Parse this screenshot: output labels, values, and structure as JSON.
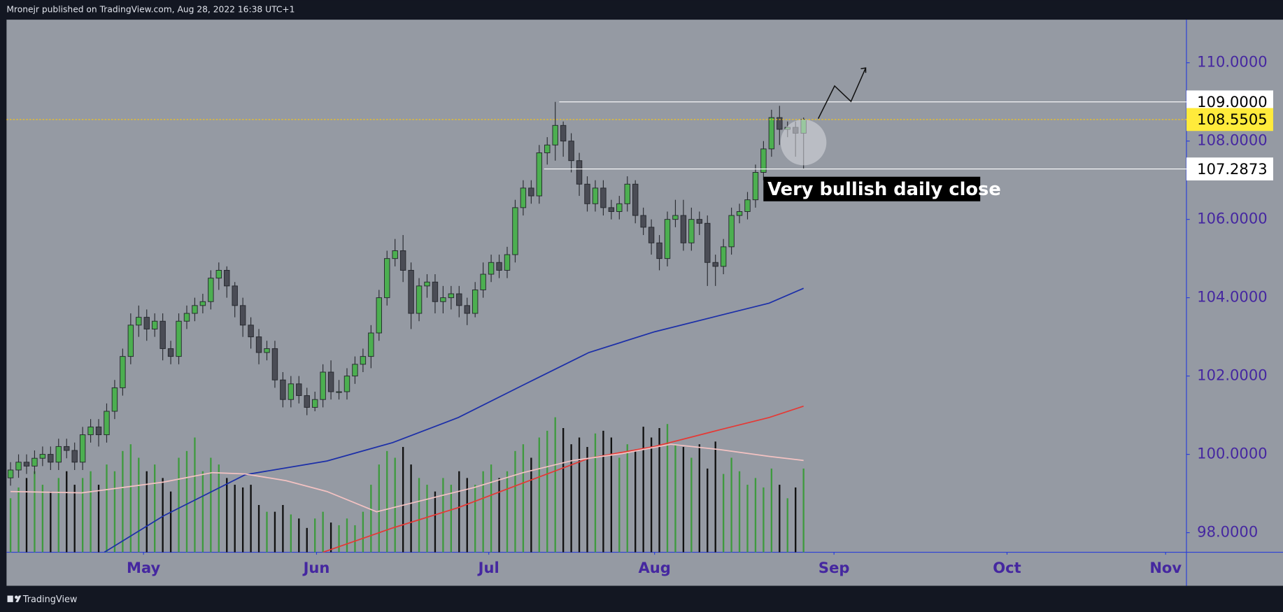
{
  "header": "Mronejr published on TradingView.com, Aug 28, 2022 16:38 UTC+1",
  "footer": "TradingView",
  "chart_data": {
    "type": "candlestick",
    "annotation": "Very bullish daily close",
    "xlim": [
      -0.5,
      146.8
    ],
    "xticks": [
      {
        "value": 16.6,
        "label": "May"
      },
      {
        "value": 38.2,
        "label": "Jun"
      },
      {
        "value": 59.7,
        "label": "Jul"
      },
      {
        "value": 80.4,
        "label": "Aug"
      },
      {
        "value": 102.8,
        "label": "Sep"
      },
      {
        "value": 124.4,
        "label": "Oct"
      },
      {
        "value": 144.2,
        "label": "Nov"
      }
    ],
    "ylim": [
      97.5,
      111.1
    ],
    "yticks": [
      {
        "value": 110,
        "label": "110.0000"
      },
      {
        "value": 108,
        "label": "108.0000"
      },
      {
        "value": 106,
        "label": "106.0000"
      },
      {
        "value": 104,
        "label": "104.0000"
      },
      {
        "value": 102,
        "label": "102.0000"
      },
      {
        "value": 100,
        "label": "100.0000"
      },
      {
        "value": 98,
        "label": "98.0000"
      }
    ],
    "up_color": "#4caf50",
    "down_color": "#4a4c55",
    "open": [
      99.4,
      99.6,
      99.8,
      99.7,
      99.9,
      100.0,
      99.8,
      100.2,
      100.1,
      99.8,
      100.5,
      100.7,
      100.5,
      101.1,
      101.7,
      102.5,
      103.3,
      103.5,
      103.2,
      103.4,
      102.7,
      102.5,
      103.4,
      103.6,
      103.8,
      103.9,
      104.5,
      104.7,
      104.3,
      103.8,
      103.3,
      103.0,
      102.6,
      102.7,
      101.9,
      101.4,
      101.8,
      101.5,
      101.2,
      101.4,
      102.1,
      101.6,
      101.6,
      102.0,
      102.3,
      102.5,
      103.1,
      104.0,
      105.0,
      105.2,
      104.7,
      103.6,
      104.3,
      104.4,
      103.9,
      104.0,
      104.1,
      103.8,
      103.6,
      104.2,
      104.6,
      104.9,
      104.7,
      105.1,
      106.3,
      106.8,
      106.6,
      107.7,
      107.9,
      108.4,
      108.0,
      107.5,
      106.9,
      106.4,
      106.8,
      106.3,
      106.2,
      106.4,
      106.9,
      106.1,
      105.8,
      105.4,
      105.0,
      106.0,
      106.1,
      105.4,
      106.0,
      105.9,
      104.9,
      104.8,
      105.3,
      106.1,
      106.2,
      106.5,
      107.2,
      107.8,
      108.6,
      108.3,
      108.35,
      108.2
    ],
    "high": [
      99.8,
      100.0,
      100.0,
      100.1,
      100.2,
      100.2,
      100.4,
      100.4,
      100.3,
      100.7,
      100.9,
      100.9,
      101.3,
      101.9,
      102.7,
      103.6,
      103.8,
      103.7,
      103.6,
      103.6,
      102.9,
      103.6,
      103.8,
      104.0,
      104.1,
      104.7,
      104.9,
      104.8,
      104.4,
      104.0,
      103.5,
      103.2,
      102.9,
      102.9,
      102.1,
      102.0,
      102.0,
      101.7,
      101.6,
      102.3,
      102.4,
      101.9,
      102.2,
      102.5,
      102.7,
      103.3,
      104.2,
      105.2,
      105.5,
      105.6,
      104.9,
      104.5,
      104.6,
      104.6,
      104.3,
      104.3,
      104.3,
      104.0,
      104.4,
      104.9,
      105.1,
      105.1,
      105.3,
      106.5,
      107.0,
      107.0,
      107.9,
      108.1,
      109.0,
      108.5,
      108.2,
      107.7,
      107.1,
      107.0,
      107.0,
      106.5,
      106.6,
      107.1,
      107.0,
      106.3,
      106.0,
      105.6,
      106.2,
      106.5,
      106.5,
      106.3,
      106.2,
      106.1,
      105.1,
      105.5,
      106.3,
      106.4,
      106.7,
      107.4,
      108.0,
      108.8,
      108.9,
      108.5,
      108.5,
      108.6
    ],
    "low": [
      99.2,
      99.4,
      99.5,
      99.5,
      99.7,
      99.6,
      99.6,
      99.9,
      99.6,
      99.6,
      100.3,
      100.2,
      100.3,
      100.9,
      101.5,
      102.3,
      103.0,
      102.9,
      103.0,
      102.4,
      102.3,
      102.3,
      103.2,
      103.4,
      103.6,
      103.7,
      104.2,
      104.0,
      103.5,
      103.0,
      102.7,
      102.3,
      102.4,
      101.7,
      101.2,
      101.2,
      101.3,
      101.0,
      101.1,
      101.2,
      101.4,
      101.4,
      101.4,
      101.8,
      102.1,
      102.2,
      102.9,
      103.8,
      104.8,
      104.4,
      103.2,
      103.4,
      104.0,
      103.6,
      103.6,
      103.7,
      103.5,
      103.3,
      103.5,
      104.0,
      104.4,
      104.5,
      104.5,
      104.9,
      106.1,
      106.4,
      106.4,
      107.4,
      107.5,
      107.6,
      107.2,
      106.6,
      106.2,
      106.2,
      106.1,
      106.0,
      106.0,
      106.2,
      105.9,
      105.6,
      105.1,
      104.7,
      104.8,
      105.8,
      105.2,
      105.2,
      105.6,
      104.3,
      104.3,
      104.6,
      105.1,
      105.9,
      106.0,
      106.3,
      107.0,
      107.6,
      107.9,
      108.1,
      107.6,
      107.29
    ],
    "close": [
      99.6,
      99.8,
      99.7,
      99.9,
      100.0,
      99.8,
      100.2,
      100.1,
      99.8,
      100.5,
      100.7,
      100.5,
      101.1,
      101.7,
      102.5,
      103.3,
      103.5,
      103.2,
      103.4,
      102.7,
      102.5,
      103.4,
      103.6,
      103.8,
      103.9,
      104.5,
      104.7,
      104.3,
      103.8,
      103.3,
      103.0,
      102.6,
      102.7,
      101.9,
      101.4,
      101.8,
      101.5,
      101.2,
      101.4,
      102.1,
      101.6,
      101.6,
      102.0,
      102.3,
      102.5,
      103.1,
      104.0,
      105.0,
      105.2,
      104.7,
      103.6,
      104.3,
      104.4,
      103.9,
      104.0,
      104.1,
      103.8,
      103.6,
      104.2,
      104.6,
      104.9,
      104.7,
      105.1,
      106.3,
      106.8,
      106.6,
      107.7,
      107.9,
      108.4,
      108.0,
      107.5,
      106.9,
      106.4,
      106.8,
      106.3,
      106.2,
      106.4,
      106.9,
      106.1,
      105.8,
      105.4,
      105.0,
      106.0,
      106.1,
      105.4,
      106.0,
      105.9,
      104.9,
      104.8,
      105.3,
      106.1,
      106.2,
      106.5,
      107.2,
      107.8,
      108.6,
      108.3,
      108.35,
      108.2,
      108.55
    ],
    "volume_ylim": [
      0,
      100
    ],
    "volume_up_color": "#3f9a3f",
    "volume_down_color": "#111111",
    "volume": [
      40,
      48,
      55,
      60,
      50,
      45,
      55,
      60,
      50,
      55,
      60,
      50,
      65,
      60,
      75,
      80,
      70,
      60,
      65,
      55,
      45,
      70,
      75,
      85,
      60,
      70,
      65,
      55,
      50,
      48,
      50,
      35,
      30,
      30,
      35,
      28,
      25,
      18,
      25,
      30,
      22,
      20,
      25,
      20,
      30,
      50,
      65,
      75,
      70,
      78,
      65,
      55,
      50,
      45,
      55,
      50,
      60,
      55,
      50,
      60,
      65,
      55,
      60,
      75,
      80,
      70,
      85,
      90,
      100,
      92,
      80,
      85,
      78,
      88,
      90,
      85,
      70,
      80,
      75,
      93,
      85,
      92,
      95,
      80,
      78,
      70,
      80,
      62,
      82,
      58,
      70,
      60,
      50,
      55,
      48,
      62,
      50,
      40,
      48,
      62
    ],
    "lines": [
      {
        "color": "#1c2fa8",
        "x": [
          11.7,
          19.1,
          29.3,
          39.5,
          47.7,
          55.9,
          64.0,
          72.2,
          80.4,
          88.6,
          94.7,
          99
        ],
        "values": [
          97.5,
          98.43,
          99.48,
          99.83,
          100.3,
          100.94,
          101.77,
          102.6,
          103.13,
          103.55,
          103.86,
          104.24
        ]
      },
      {
        "color": "#e53935",
        "x": [
          39.0,
          47.7,
          55.9,
          64.0,
          72.2,
          80.4,
          88.6,
          94.7,
          99
        ],
        "values": [
          97.5,
          98.12,
          98.64,
          99.27,
          99.9,
          100.2,
          100.63,
          100.94,
          101.23
        ]
      },
      {
        "color": "#f3c2c2",
        "axis": "volume",
        "x": [
          0,
          8.9,
          19.1,
          25.2,
          29.3,
          34.4,
          39.5,
          45.7,
          51.8,
          57.9,
          64.0,
          70.2,
          76.3,
          82.4,
          88.6,
          94.7,
          99
        ],
        "values": [
          45,
          44,
          52,
          59,
          58,
          53,
          45,
          30,
          39,
          48,
          59,
          68,
          73,
          80,
          76,
          71,
          68
        ]
      }
    ],
    "price_lines": [
      {
        "value": 109,
        "label": "109.0000",
        "from_x": 68.5,
        "color": "#ffffff",
        "label_bg": "#ffffff"
      },
      {
        "value": 108.5505,
        "label": "108.5505",
        "from_x": -0.5,
        "color": "#f5c518",
        "dashed": true,
        "label_bg": "#ffeb3b"
      },
      {
        "value": 107.2873,
        "label": "107.2873",
        "from_x": 66.6,
        "color": "#ffffff",
        "label_bg": "#ffffff"
      }
    ]
  }
}
